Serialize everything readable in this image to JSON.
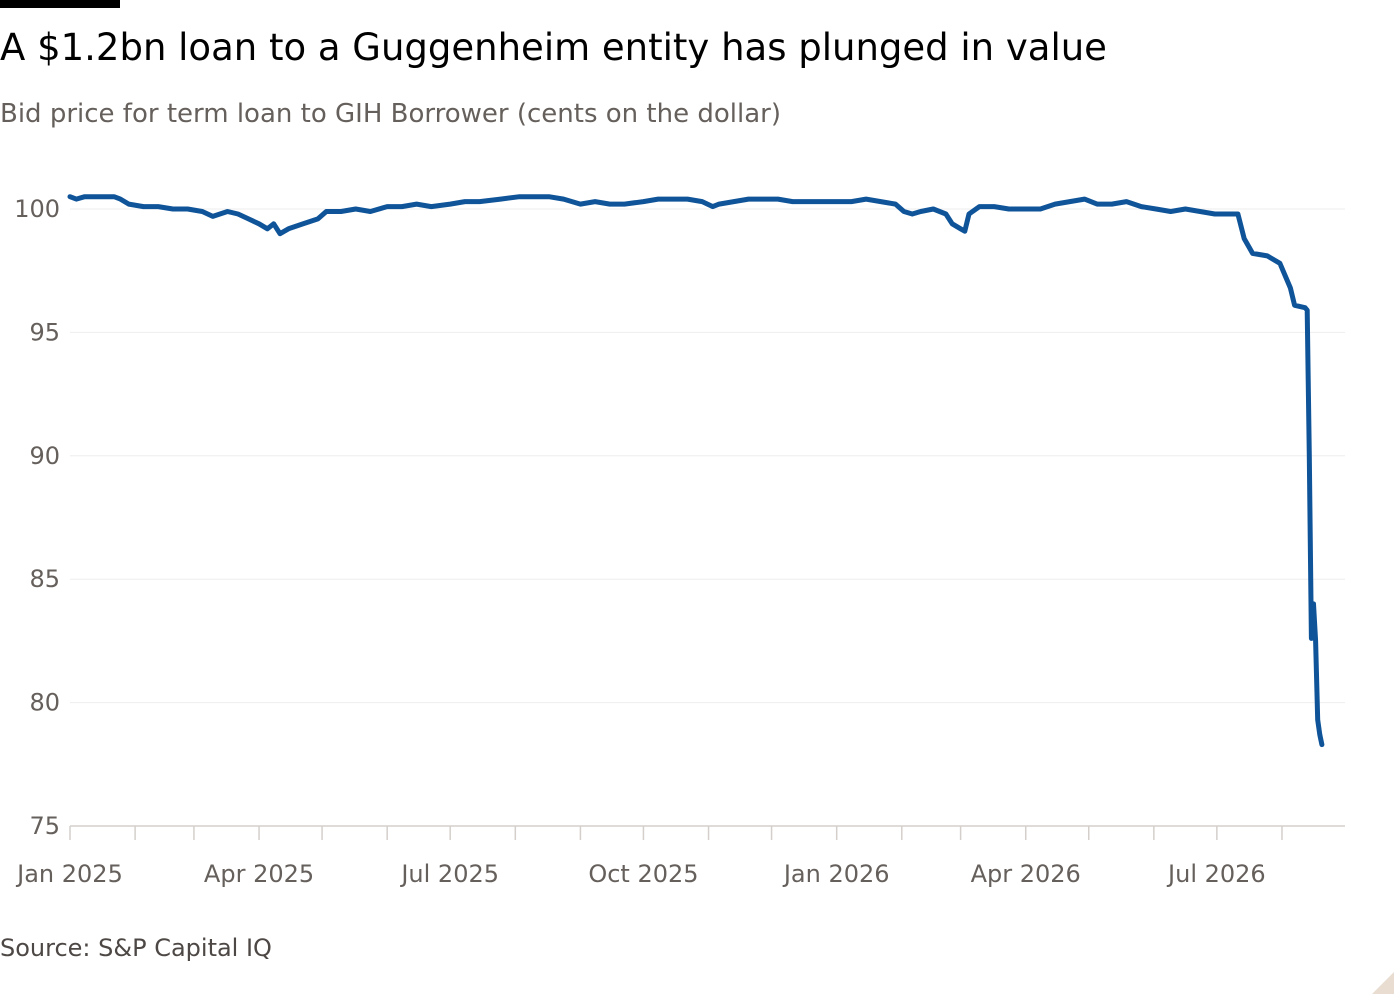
{
  "title": "A $1.2bn loan to a Guggenheim entity has plunged in value",
  "subtitle": "Bid price for term loan to GIH Borrower (cents on the dollar)",
  "source": "Source: S&P Capital IQ",
  "colors": {
    "line": "#0f5499",
    "grid": "#eeeeee",
    "axis": "#d4cfcb",
    "text": "#66605c"
  },
  "chart_data": {
    "type": "line",
    "title": "A $1.2bn loan to a Guggenheim entity has plunged in value",
    "subtitle": "Bid price for term loan to GIH Borrower (cents on the dollar)",
    "xlabel": "",
    "ylabel": "",
    "xlim": [
      "2025-01-01",
      "2026-08-31"
    ],
    "ylim": [
      75,
      101.5
    ],
    "grid": "horizontal",
    "legend": "none",
    "y_ticks": [
      75,
      80,
      85,
      90,
      95,
      100
    ],
    "x_ticks": [
      {
        "date": "2025-01-01",
        "label": "Jan 2025"
      },
      {
        "date": "2025-04-01",
        "label": "Apr 2025"
      },
      {
        "date": "2025-07-01",
        "label": "Jul 2025"
      },
      {
        "date": "2025-10-01",
        "label": "Oct 2025"
      },
      {
        "date": "2026-01-01",
        "label": "Jan 2026"
      },
      {
        "date": "2026-04-01",
        "label": "Apr 2026"
      },
      {
        "date": "2026-07-01",
        "label": "Jul 2026"
      }
    ],
    "minor_x_ticks": [
      "2025-01-01",
      "2025-02-01",
      "2025-03-01",
      "2025-04-01",
      "2025-05-01",
      "2025-06-01",
      "2025-07-01",
      "2025-08-01",
      "2025-09-01",
      "2025-10-01",
      "2025-11-01",
      "2025-12-01",
      "2026-01-01",
      "2026-02-01",
      "2026-03-01",
      "2026-04-01",
      "2026-05-01",
      "2026-06-01",
      "2026-07-01",
      "2026-08-01"
    ],
    "series": [
      {
        "name": "",
        "points": [
          [
            "2025-01-01",
            100.5
          ],
          [
            "2025-01-04",
            100.4
          ],
          [
            "2025-01-08",
            100.5
          ],
          [
            "2025-01-15",
            100.5
          ],
          [
            "2025-01-22",
            100.5
          ],
          [
            "2025-01-25",
            100.4
          ],
          [
            "2025-01-29",
            100.2
          ],
          [
            "2025-02-05",
            100.1
          ],
          [
            "2025-02-12",
            100.1
          ],
          [
            "2025-02-19",
            100.0
          ],
          [
            "2025-02-26",
            100.0
          ],
          [
            "2025-03-05",
            99.9
          ],
          [
            "2025-03-10",
            99.7
          ],
          [
            "2025-03-17",
            99.9
          ],
          [
            "2025-03-22",
            99.8
          ],
          [
            "2025-03-27",
            99.6
          ],
          [
            "2025-04-01",
            99.4
          ],
          [
            "2025-04-05",
            99.2
          ],
          [
            "2025-04-08",
            99.4
          ],
          [
            "2025-04-11",
            99.0
          ],
          [
            "2025-04-15",
            99.2
          ],
          [
            "2025-04-22",
            99.4
          ],
          [
            "2025-04-29",
            99.6
          ],
          [
            "2025-05-03",
            99.9
          ],
          [
            "2025-05-10",
            99.9
          ],
          [
            "2025-05-17",
            100.0
          ],
          [
            "2025-05-24",
            99.9
          ],
          [
            "2025-06-01",
            100.1
          ],
          [
            "2025-06-08",
            100.1
          ],
          [
            "2025-06-15",
            100.2
          ],
          [
            "2025-06-22",
            100.1
          ],
          [
            "2025-07-01",
            100.2
          ],
          [
            "2025-07-08",
            100.3
          ],
          [
            "2025-07-15",
            100.3
          ],
          [
            "2025-07-25",
            100.4
          ],
          [
            "2025-08-03",
            100.5
          ],
          [
            "2025-08-10",
            100.5
          ],
          [
            "2025-08-17",
            100.5
          ],
          [
            "2025-08-24",
            100.4
          ],
          [
            "2025-09-01",
            100.2
          ],
          [
            "2025-09-08",
            100.3
          ],
          [
            "2025-09-15",
            100.2
          ],
          [
            "2025-09-22",
            100.2
          ],
          [
            "2025-10-01",
            100.3
          ],
          [
            "2025-10-08",
            100.4
          ],
          [
            "2025-10-15",
            100.4
          ],
          [
            "2025-10-22",
            100.4
          ],
          [
            "2025-10-29",
            100.3
          ],
          [
            "2025-11-03",
            100.1
          ],
          [
            "2025-11-06",
            100.2
          ],
          [
            "2025-11-13",
            100.3
          ],
          [
            "2025-11-20",
            100.4
          ],
          [
            "2025-11-27",
            100.4
          ],
          [
            "2025-12-04",
            100.4
          ],
          [
            "2025-12-11",
            100.3
          ],
          [
            "2025-12-18",
            100.3
          ],
          [
            "2025-12-25",
            100.3
          ],
          [
            "2026-01-01",
            100.3
          ],
          [
            "2026-01-08",
            100.3
          ],
          [
            "2026-01-15",
            100.4
          ],
          [
            "2026-01-22",
            100.3
          ],
          [
            "2026-01-29",
            100.2
          ],
          [
            "2026-02-02",
            99.9
          ],
          [
            "2026-02-06",
            99.8
          ],
          [
            "2026-02-10",
            99.9
          ],
          [
            "2026-02-16",
            100.0
          ],
          [
            "2026-02-22",
            99.8
          ],
          [
            "2026-02-25",
            99.4
          ],
          [
            "2026-03-01",
            99.2
          ],
          [
            "2026-03-03",
            99.1
          ],
          [
            "2026-03-05",
            99.8
          ],
          [
            "2026-03-10",
            100.1
          ],
          [
            "2026-03-17",
            100.1
          ],
          [
            "2026-03-24",
            100.0
          ],
          [
            "2026-04-01",
            100.0
          ],
          [
            "2026-04-08",
            100.0
          ],
          [
            "2026-04-15",
            100.2
          ],
          [
            "2026-04-22",
            100.3
          ],
          [
            "2026-04-29",
            100.4
          ],
          [
            "2026-05-05",
            100.2
          ],
          [
            "2026-05-12",
            100.2
          ],
          [
            "2026-05-19",
            100.3
          ],
          [
            "2026-05-26",
            100.1
          ],
          [
            "2026-06-02",
            100.0
          ],
          [
            "2026-06-09",
            99.9
          ],
          [
            "2026-06-16",
            100.0
          ],
          [
            "2026-06-23",
            99.9
          ],
          [
            "2026-06-30",
            99.8
          ],
          [
            "2026-07-07",
            99.8
          ],
          [
            "2026-07-11",
            99.8
          ],
          [
            "2026-07-14",
            98.8
          ],
          [
            "2026-07-18",
            98.2
          ],
          [
            "2026-07-25",
            98.1
          ],
          [
            "2026-07-31",
            97.8
          ],
          [
            "2026-08-03",
            97.2
          ],
          [
            "2026-08-05",
            96.8
          ],
          [
            "2026-08-07",
            96.1
          ],
          [
            "2026-08-12",
            96.0
          ],
          [
            "2026-08-13",
            95.9
          ],
          [
            "2026-08-14",
            90.0
          ],
          [
            "2026-08-15",
            82.6
          ],
          [
            "2026-08-16",
            84.0
          ],
          [
            "2026-08-17",
            82.5
          ],
          [
            "2026-08-18",
            79.3
          ],
          [
            "2026-08-19",
            78.7
          ],
          [
            "2026-08-20",
            78.3
          ]
        ]
      }
    ]
  }
}
